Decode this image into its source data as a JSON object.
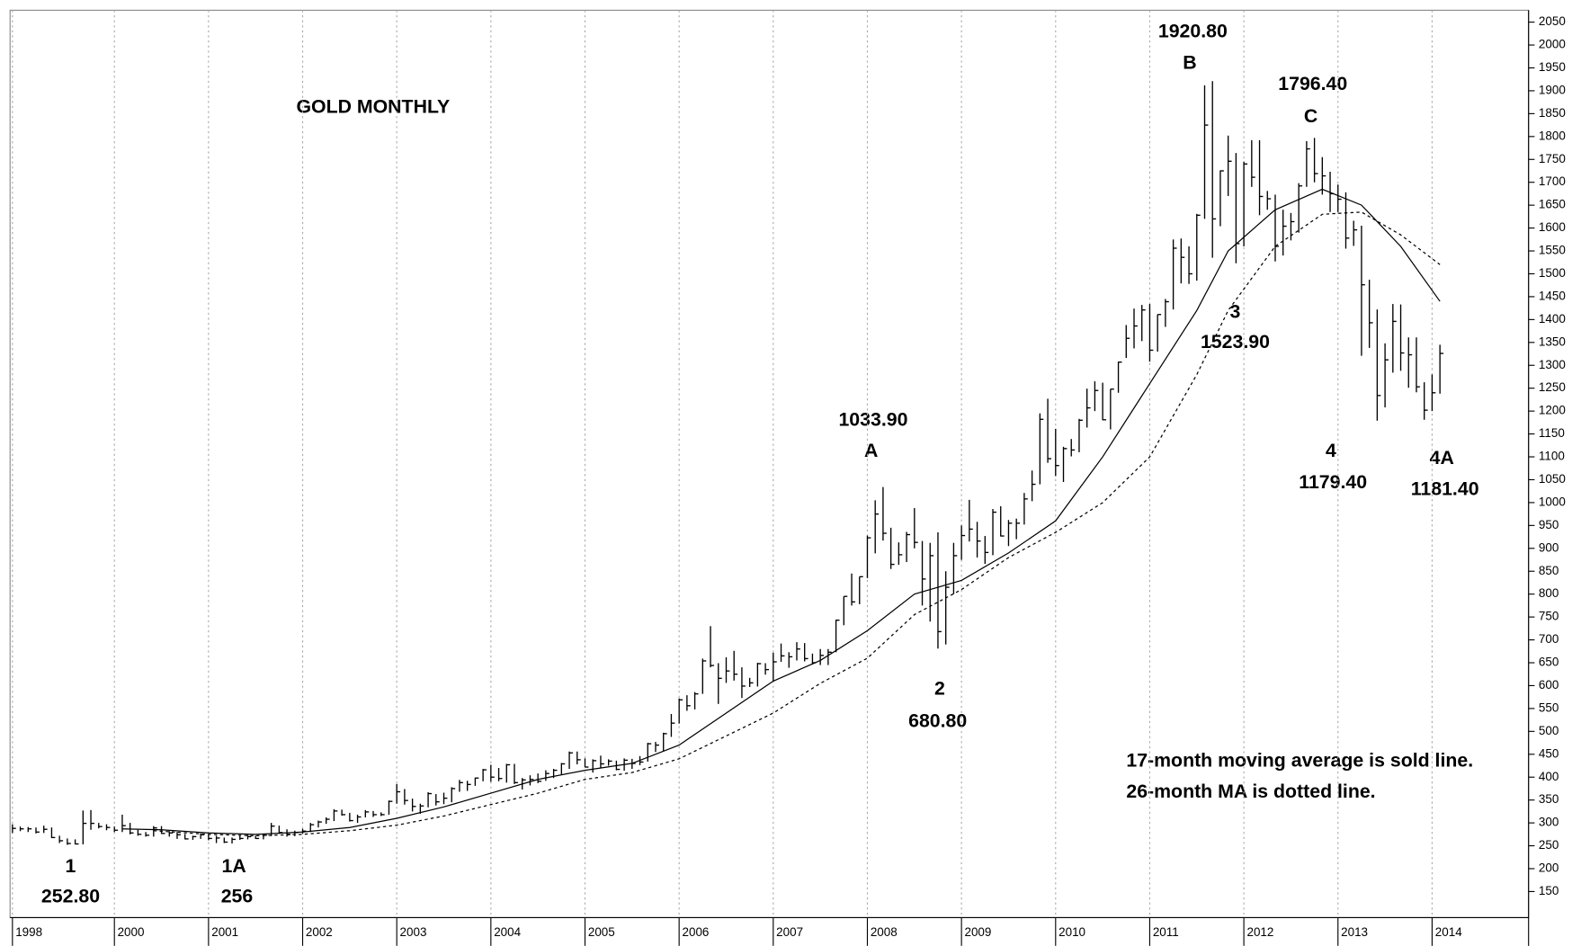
{
  "chart_data": {
    "type": "ohlc",
    "title": "GOLD MONTHLY",
    "color": "#000000",
    "xlim": [
      -0.3,
      193.3
    ],
    "xticks": [
      {
        "value": 0,
        "label": "1998"
      },
      {
        "value": 13,
        "label": "2000"
      },
      {
        "value": 25,
        "label": "2001"
      },
      {
        "value": 37,
        "label": "2002"
      },
      {
        "value": 49,
        "label": "2003"
      },
      {
        "value": 61,
        "label": "2004"
      },
      {
        "value": 73,
        "label": "2005"
      },
      {
        "value": 85,
        "label": "2006"
      },
      {
        "value": 97,
        "label": "2007"
      },
      {
        "value": 109,
        "label": "2008"
      },
      {
        "value": 121,
        "label": "2009"
      },
      {
        "value": 133,
        "label": "2010"
      },
      {
        "value": 145,
        "label": "2011"
      },
      {
        "value": 157,
        "label": "2012"
      },
      {
        "value": 169,
        "label": "2013"
      },
      {
        "value": 181,
        "label": "2014"
      }
    ],
    "ylim": [
      93,
      2076
    ],
    "yticks": [
      150,
      200,
      250,
      300,
      350,
      400,
      450,
      500,
      550,
      600,
      650,
      700,
      750,
      800,
      850,
      900,
      950,
      1000,
      1050,
      1100,
      1150,
      1200,
      1250,
      1300,
      1350,
      1400,
      1450,
      1500,
      1550,
      1600,
      1650,
      1700,
      1750,
      1800,
      1850,
      1900,
      1950,
      2000,
      2050
    ],
    "grid": "x-dotted",
    "ohlc": {
      "high": [
        297,
        292,
        291,
        290,
        294,
        290,
        272,
        266,
        264,
        327,
        328,
        300,
        297,
        292,
        318,
        300,
        285,
        280,
        293,
        293,
        282,
        280,
        276,
        272,
        277,
        276,
        272,
        268,
        268,
        272,
        274,
        272,
        275,
        300,
        294,
        286,
        283,
        287,
        300,
        305,
        312,
        330,
        329,
        322,
        318,
        328,
        326,
        323,
        349,
        385,
        374,
        353,
        342,
        367,
        363,
        366,
        378,
        394,
        392,
        399,
        418,
        427,
        420,
        429,
        429,
        398,
        404,
        408,
        415,
        418,
        431,
        456,
        456,
        441,
        439,
        447,
        439,
        436,
        441,
        440,
        446,
        475,
        477,
        497,
        538,
        572,
        579,
        586,
        659,
        730,
        649,
        662,
        676,
        640,
        617,
        650,
        649,
        672,
        692,
        673,
        695,
        693,
        670,
        680,
        680,
        744,
        795,
        845,
        838,
        928,
        1005,
        1034,
        945,
        913,
        936,
        988,
        916,
        912,
        935,
        850,
        912,
        950,
        1006,
        958,
        927,
        986,
        992,
        962,
        965,
        1021,
        1070,
        1195,
        1227,
        1161,
        1122,
        1139,
        1183,
        1249,
        1265,
        1262,
        1248,
        1308,
        1388,
        1424,
        1432,
        1434,
        1411,
        1445,
        1575,
        1577,
        1560,
        1631,
        1912,
        1921,
        1726,
        1802,
        1764,
        1745,
        1792,
        1792,
        1681,
        1673,
        1640,
        1633,
        1698,
        1790,
        1797,
        1755,
        1723,
        1695,
        1678,
        1616,
        1605,
        1487,
        1422,
        1348,
        1434,
        1433,
        1361,
        1361,
        1263,
        1280,
        1345
      ],
      "low": [
        278,
        282,
        280,
        277,
        278,
        267,
        256,
        252,
        253,
        253,
        285,
        288,
        284,
        280,
        280,
        275,
        272,
        270,
        270,
        276,
        270,
        265,
        264,
        263,
        265,
        262,
        256,
        256,
        255,
        263,
        264,
        265,
        264,
        271,
        276,
        270,
        271,
        276,
        280,
        290,
        298,
        304,
        316,
        303,
        300,
        312,
        313,
        315,
        318,
        342,
        340,
        325,
        320,
        334,
        338,
        341,
        345,
        368,
        370,
        381,
        391,
        390,
        391,
        388,
        385,
        373,
        382,
        387,
        392,
        398,
        405,
        418,
        428,
        422,
        410,
        421,
        425,
        415,
        414,
        418,
        426,
        434,
        455,
        457,
        488,
        517,
        545,
        548,
        582,
        640,
        560,
        606,
        611,
        573,
        597,
        598,
        624,
        610,
        652,
        639,
        655,
        653,
        646,
        645,
        645,
        673,
        732,
        775,
        778,
        835,
        889,
        917,
        855,
        864,
        870,
        900,
        775,
        740,
        681,
        690,
        800,
        875,
        915,
        880,
        866,
        885,
        926,
        905,
        920,
        952,
        1003,
        1040,
        1087,
        1058,
        1045,
        1101,
        1110,
        1164,
        1200,
        1180,
        1160,
        1240,
        1316,
        1337,
        1353,
        1308,
        1330,
        1384,
        1422,
        1479,
        1478,
        1485,
        1620,
        1535,
        1604,
        1670,
        1523,
        1560,
        1690,
        1628,
        1640,
        1527,
        1540,
        1573,
        1590,
        1690,
        1700,
        1673,
        1635,
        1635,
        1555,
        1561,
        1321,
        1338,
        1179,
        1208,
        1284,
        1288,
        1251,
        1241,
        1181,
        1200,
        1238
      ],
      "close": [
        288,
        287,
        287,
        280,
        286,
        268,
        261,
        255,
        254,
        299,
        299,
        292,
        290,
        284,
        294,
        278,
        275,
        273,
        289,
        277,
        278,
        274,
        265,
        270,
        274,
        266,
        267,
        258,
        264,
        266,
        270,
        266,
        273,
        293,
        279,
        275,
        279,
        282,
        296,
        302,
        308,
        326,
        318,
        305,
        313,
        324,
        318,
        318,
        347,
        368,
        349,
        336,
        337,
        364,
        346,
        354,
        375,
        388,
        384,
        398,
        416,
        400,
        397,
        427,
        388,
        394,
        395,
        391,
        408,
        415,
        429,
        453,
        438,
        422,
        436,
        429,
        435,
        417,
        437,
        430,
        433,
        473,
        470,
        495,
        518,
        569,
        556,
        582,
        654,
        644,
        616,
        632,
        625,
        599,
        606,
        648,
        635,
        652,
        665,
        663,
        680,
        659,
        650,
        666,
        673,
        743,
        795,
        783,
        838,
        923,
        975,
        933,
        865,
        886,
        930,
        913,
        833,
        884,
        718,
        815,
        884,
        928,
        942,
        916,
        891,
        979,
        927,
        955,
        955,
        1008,
        1040,
        1182,
        1096,
        1081,
        1118,
        1115,
        1180,
        1207,
        1245,
        1181,
        1248,
        1307,
        1359,
        1386,
        1421,
        1333,
        1411,
        1439,
        1556,
        1536,
        1500,
        1628,
        1825,
        1620,
        1725,
        1746,
        1566,
        1740,
        1711,
        1669,
        1664,
        1560,
        1604,
        1614,
        1692,
        1773,
        1719,
        1714,
        1675,
        1663,
        1578,
        1596,
        1476,
        1393,
        1234,
        1312,
        1396,
        1327,
        1323,
        1253,
        1202,
        1240,
        1326
      ]
    },
    "lines": [
      {
        "style": "solid",
        "x": [
          14,
          19,
          25,
          31,
          37,
          43,
          49,
          55,
          61,
          67,
          73,
          79,
          85,
          91,
          97,
          103,
          109,
          115,
          121,
          127,
          133,
          139,
          145,
          151,
          155,
          161,
          167,
          172,
          177,
          182
        ],
        "values": [
          287,
          285,
          278,
          275,
          280,
          290,
          310,
          335,
          365,
          395,
          415,
          430,
          470,
          540,
          610,
          655,
          720,
          800,
          830,
          890,
          960,
          1100,
          1260,
          1420,
          1550,
          1640,
          1685,
          1650,
          1560,
          1440
        ]
      },
      {
        "style": "dotted",
        "x": [
          18,
          25,
          31,
          37,
          43,
          49,
          55,
          61,
          67,
          73,
          79,
          85,
          91,
          97,
          103,
          109,
          115,
          121,
          127,
          133,
          139,
          145,
          151,
          155,
          161,
          167,
          172,
          177,
          182
        ],
        "values": [
          283,
          275,
          272,
          275,
          283,
          295,
          315,
          340,
          365,
          395,
          410,
          440,
          490,
          540,
          605,
          660,
          755,
          810,
          880,
          935,
          1000,
          1100,
          1280,
          1420,
          1560,
          1630,
          1635,
          1585,
          1520
        ]
      }
    ],
    "annotations": [
      "1",
      "252.80",
      "1A",
      "256",
      "1033.90",
      "A",
      "2",
      "680.80",
      "1920.80",
      "B",
      "1796.40",
      "C",
      "3",
      "1523.90",
      "4",
      "1179.40",
      "4A",
      "1181.40",
      "17-month moving average is sold line.",
      "26-month MA is dotted line."
    ]
  }
}
